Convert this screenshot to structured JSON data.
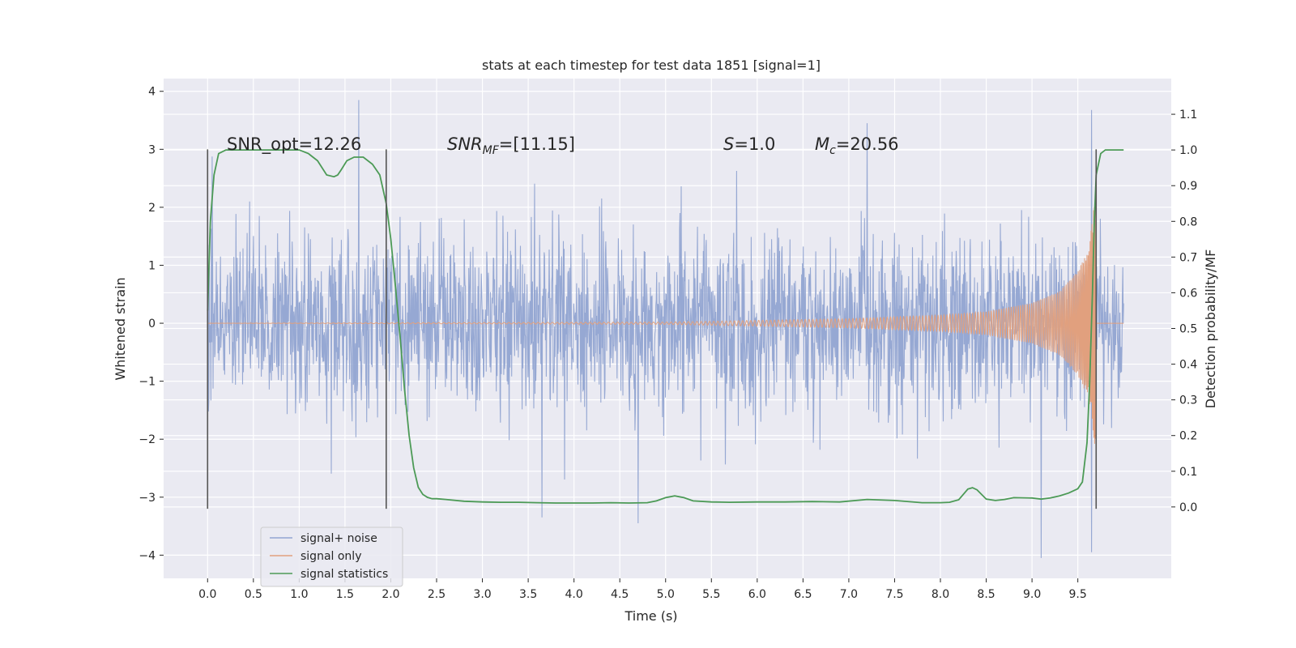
{
  "chart_data": {
    "type": "line",
    "title": "stats at each timestep for test data 1851 [signal=1]",
    "xlabel": "Time (s)",
    "ylabel": "Whitened strain",
    "ylabel_right": "Detection probability/MF",
    "xlim": [
      -0.48,
      10.52
    ],
    "ylim": [
      -4.4,
      4.22
    ],
    "ylim_right": [
      -0.2,
      1.2
    ],
    "x_ticks": [
      "0.0",
      "0.5",
      "1.0",
      "1.5",
      "2.0",
      "2.5",
      "3.0",
      "3.5",
      "4.0",
      "4.5",
      "5.0",
      "5.5",
      "6.0",
      "6.5",
      "7.0",
      "7.5",
      "8.0",
      "8.5",
      "9.0",
      "9.5"
    ],
    "y_ticks": [
      "−4",
      "−3",
      "−2",
      "−1",
      "0",
      "1",
      "2",
      "3",
      "4"
    ],
    "y_ticks_right": [
      "0.0",
      "0.1",
      "0.2",
      "0.3",
      "0.4",
      "0.5",
      "0.6",
      "0.7",
      "0.8",
      "0.9",
      "1.0",
      "1.1"
    ],
    "grid": true,
    "legend_position": "lower-left",
    "annotations": {
      "snr_opt": "SNR_opt=12.26",
      "snr_mf_label": "SNR",
      "snr_mf_sub": "MF",
      "snr_mf_value": "=[11.15]",
      "s_label": "S",
      "s_value": "=1.0",
      "mc_label": "M",
      "mc_sub": "c",
      "mc_value": "=20.56"
    },
    "vlines_x": [
      0.0,
      1.95,
      9.7
    ],
    "vlines_span": [
      -3.2,
      3.0
    ],
    "series": [
      {
        "name": "signal+ noise",
        "color": "#91a4d1",
        "axis": "left",
        "x_range": [
          0.0,
          10.0
        ],
        "envelope_typical": [
          -1.8,
          1.8
        ],
        "notable_peaks": [
          {
            "x": 1.65,
            "y": 3.85
          },
          {
            "x": 7.2,
            "y": 3.45
          },
          {
            "x": 9.65,
            "y": 3.68
          },
          {
            "x": 9.1,
            "y": -4.05
          },
          {
            "x": 9.65,
            "y": -3.95
          },
          {
            "x": 4.7,
            "y": -3.45
          },
          {
            "x": 3.65,
            "y": -3.35
          }
        ]
      },
      {
        "name": "signal only",
        "color": "#e1a07e",
        "axis": "left",
        "type": "chirp",
        "x_range": [
          0.0,
          10.0
        ],
        "merger_time": 9.72,
        "envelope": [
          {
            "x": 0.0,
            "amp": 0.0
          },
          {
            "x": 5.0,
            "amp": 0.02
          },
          {
            "x": 6.0,
            "amp": 0.05
          },
          {
            "x": 7.0,
            "amp": 0.08
          },
          {
            "x": 8.0,
            "amp": 0.14
          },
          {
            "x": 8.5,
            "amp": 0.2
          },
          {
            "x": 9.0,
            "amp": 0.35
          },
          {
            "x": 9.3,
            "amp": 0.55
          },
          {
            "x": 9.5,
            "amp": 0.9
          },
          {
            "x": 9.62,
            "amp": 1.3
          },
          {
            "x": 9.7,
            "amp": 2.3
          }
        ]
      },
      {
        "name": "signal statistics",
        "color": "#4c9a56",
        "axis": "right",
        "x": [
          0.0,
          0.03,
          0.07,
          0.12,
          0.2,
          0.35,
          0.55,
          0.8,
          1.0,
          1.1,
          1.2,
          1.3,
          1.38,
          1.42,
          1.46,
          1.52,
          1.6,
          1.7,
          1.8,
          1.88,
          1.95,
          2.0,
          2.05,
          2.1,
          2.15,
          2.2,
          2.25,
          2.3,
          2.35,
          2.4,
          2.45,
          2.5,
          2.6,
          2.8,
          3.0,
          3.2,
          3.4,
          3.6,
          3.8,
          4.0,
          4.2,
          4.4,
          4.6,
          4.8,
          4.9,
          5.0,
          5.1,
          5.2,
          5.3,
          5.5,
          5.7,
          6.0,
          6.3,
          6.6,
          6.9,
          7.2,
          7.5,
          7.8,
          8.0,
          8.1,
          8.2,
          8.3,
          8.35,
          8.4,
          8.5,
          8.6,
          8.7,
          8.8,
          9.0,
          9.1,
          9.2,
          9.3,
          9.4,
          9.5,
          9.55,
          9.6,
          9.63,
          9.66,
          9.68,
          9.7,
          9.75,
          9.8,
          9.85,
          9.9,
          9.95,
          10.0
        ],
        "values": [
          0.55,
          0.8,
          0.93,
          0.99,
          1.0,
          1.0,
          1.0,
          1.0,
          1.0,
          0.99,
          0.97,
          0.93,
          0.925,
          0.93,
          0.945,
          0.97,
          0.98,
          0.98,
          0.96,
          0.93,
          0.85,
          0.75,
          0.62,
          0.48,
          0.33,
          0.2,
          0.11,
          0.055,
          0.035,
          0.027,
          0.023,
          0.023,
          0.021,
          0.016,
          0.014,
          0.013,
          0.013,
          0.012,
          0.011,
          0.011,
          0.011,
          0.012,
          0.011,
          0.012,
          0.017,
          0.026,
          0.031,
          0.026,
          0.017,
          0.014,
          0.013,
          0.014,
          0.014,
          0.015,
          0.014,
          0.021,
          0.018,
          0.012,
          0.012,
          0.013,
          0.02,
          0.05,
          0.054,
          0.048,
          0.022,
          0.018,
          0.021,
          0.026,
          0.025,
          0.022,
          0.025,
          0.031,
          0.039,
          0.051,
          0.07,
          0.18,
          0.35,
          0.6,
          0.8,
          0.93,
          0.99,
          1.0,
          1.0,
          1.0,
          1.0,
          1.0
        ]
      }
    ]
  }
}
